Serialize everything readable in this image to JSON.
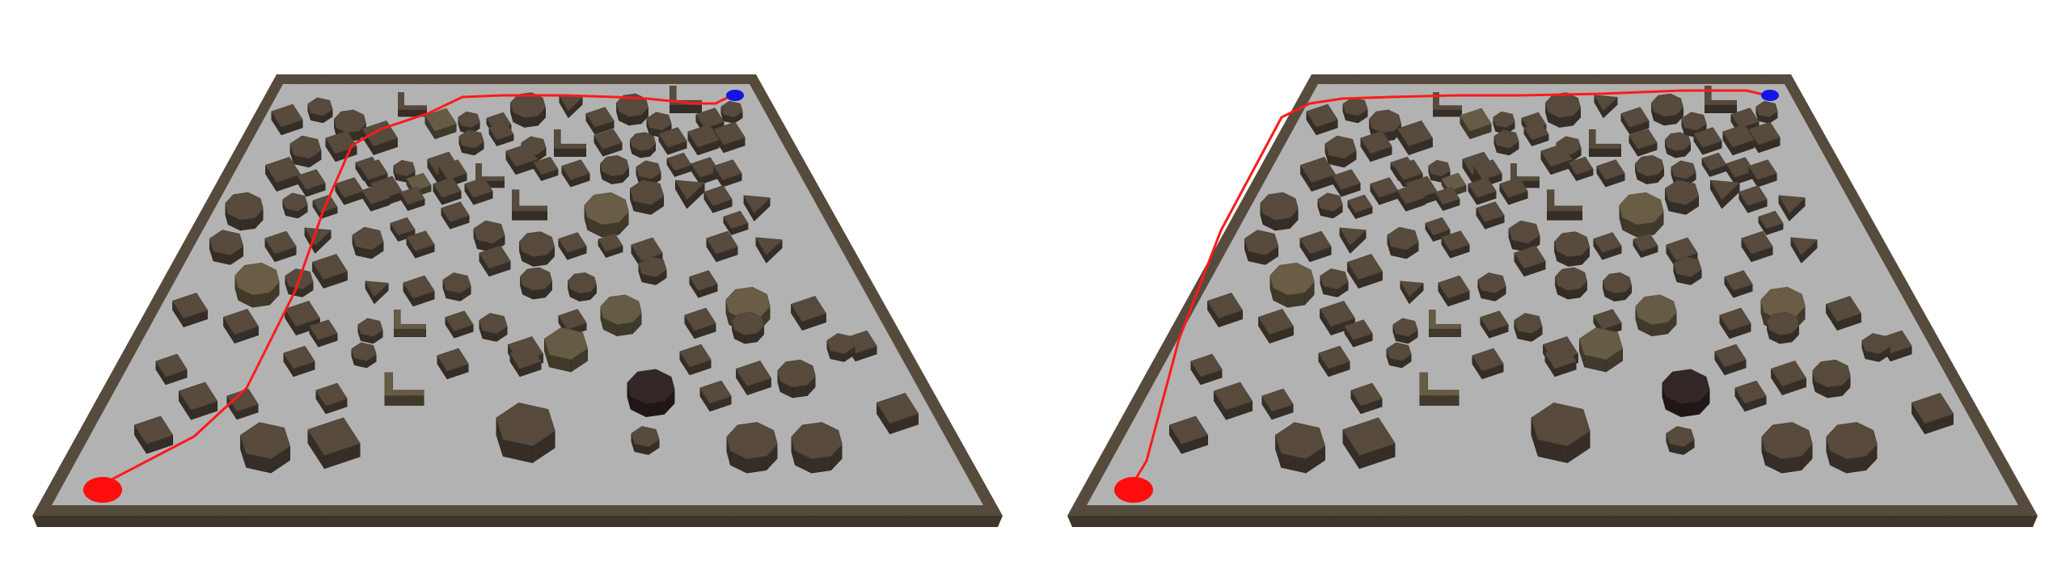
{
  "colors": {
    "background": "#ffffff",
    "floor": "#b2b2b2",
    "wall_top": "#5a4e40",
    "wall_side": "#3e352b",
    "obstacle_top": "#5a4d3e",
    "obstacle_side": "#3a3128",
    "path": "#ff1a1a",
    "start_marker": "#ff0d0d",
    "goal_marker": "#1414e6"
  },
  "panels": [
    {
      "name": "left-panel",
      "path_style": "diagonal"
    },
    {
      "name": "right-panel",
      "path_style": "wall-hugging"
    }
  ],
  "markers": {
    "start": "start-marker",
    "goal": "goal-marker"
  }
}
